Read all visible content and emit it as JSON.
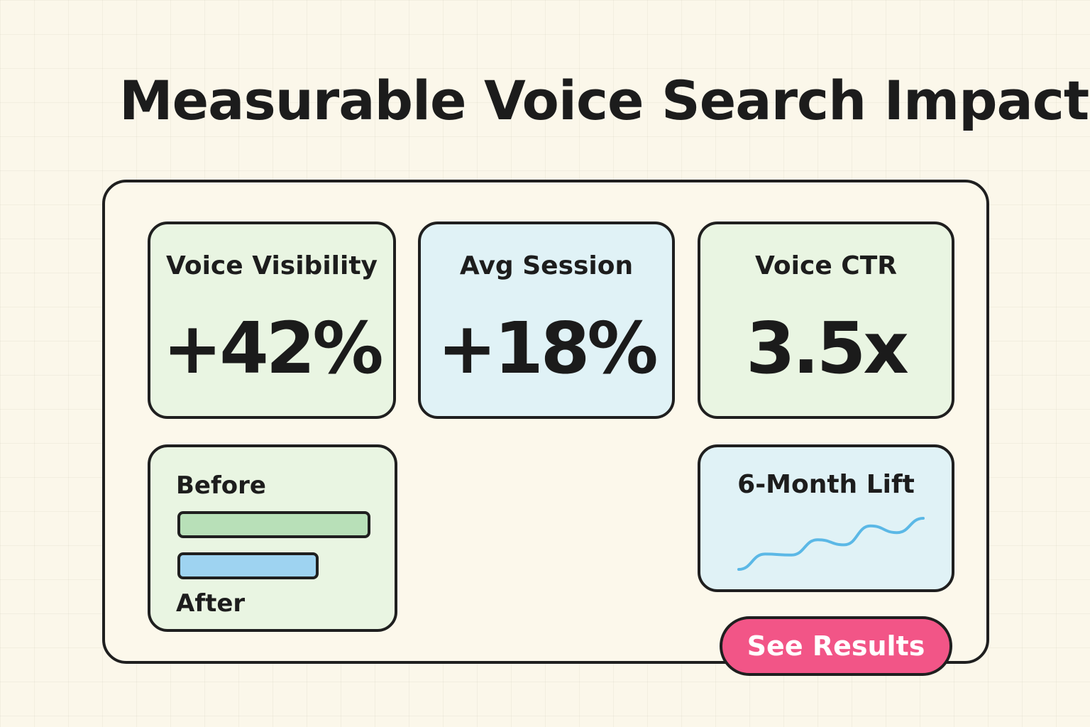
{
  "title": "Measurable Voice Search Impact",
  "colors": {
    "background": "#fbf7ea",
    "green_card": "#e9f5e2",
    "blue_card": "#e0f2f6",
    "bar_before": "#b8e0b8",
    "bar_after": "#9ed3f1",
    "line": "#5bb8e6",
    "button": "#f25587"
  },
  "metrics": [
    {
      "label": "Voice Visibility",
      "value": "+42%"
    },
    {
      "label": "Avg Session",
      "value": "+18%"
    },
    {
      "label": "Voice CTR",
      "value": "3.5x"
    }
  ],
  "comparison": {
    "before_label": "Before",
    "after_label": "After",
    "before_fraction": 1.0,
    "after_fraction": 0.73
  },
  "lift_chart": {
    "label": "6-Month Lift",
    "values": [
      0,
      0.3,
      0.28,
      0.58,
      0.48,
      0.85,
      0.72,
      1.0
    ]
  },
  "cta": {
    "label": "See Results"
  }
}
